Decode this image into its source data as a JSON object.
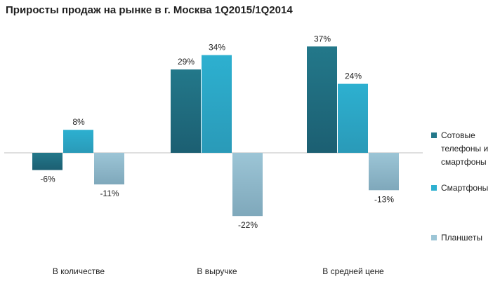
{
  "chart_data": {
    "type": "bar",
    "title": "Приросты продаж на рынке в г. Москва 1Q2015/1Q2014",
    "categories": [
      "В количестве",
      "В выручке",
      "В средней цене"
    ],
    "series": [
      {
        "name": "Сотовые телефоны и смартфоны",
        "values": [
          -6,
          29,
          37
        ],
        "labels": [
          "-6%",
          "29%",
          "37%"
        ]
      },
      {
        "name": "Смартфоны",
        "values": [
          8,
          34,
          24
        ],
        "labels": [
          "8%",
          "34%",
          "24%"
        ]
      },
      {
        "name": "Планшеты",
        "values": [
          -11,
          -22,
          -13
        ],
        "labels": [
          "-11%",
          "-22%",
          "-13%"
        ]
      }
    ],
    "ylim": [
      -40,
      40
    ],
    "grid": false,
    "legend": "right",
    "colors": [
      "#23788a",
      "#2db0d0",
      "#9cc5d6"
    ],
    "colors_dark": [
      "#1c5f72",
      "#2a9ab8",
      "#7fa8bb"
    ]
  }
}
